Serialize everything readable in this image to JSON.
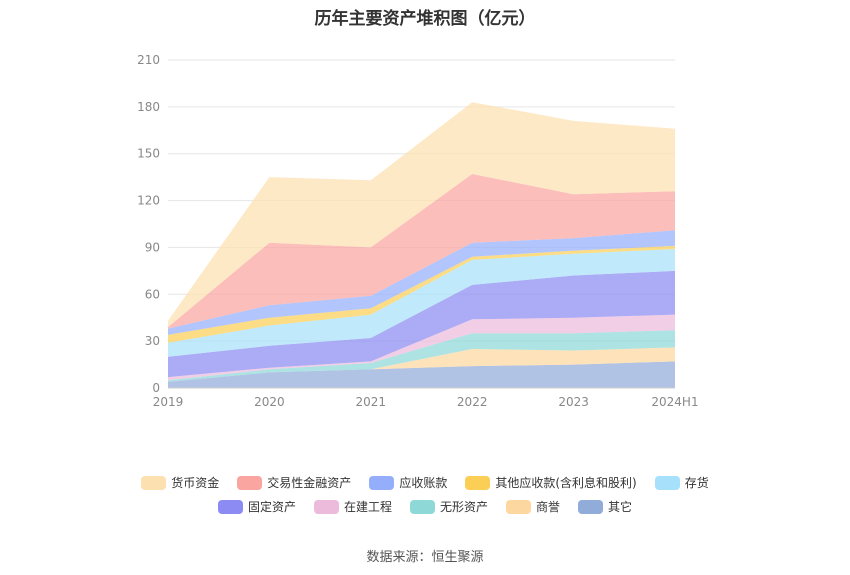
{
  "title": "历年主要资产堆积图（亿元）",
  "source": "数据来源：恒生聚源",
  "chart_data": {
    "type": "area",
    "stacked": true,
    "title": "历年主要资产堆积图（亿元）",
    "categories": [
      "2019",
      "2020",
      "2021",
      "2022",
      "2023",
      "2024H1"
    ],
    "ylim": [
      0,
      210
    ],
    "yticks": [
      0,
      30,
      60,
      90,
      120,
      150,
      180,
      210
    ],
    "grid": true,
    "legend_position": "bottom",
    "series": [
      {
        "name": "其它",
        "color": "#92acd9",
        "values": [
          4,
          10,
          12,
          14,
          15,
          17
        ]
      },
      {
        "name": "商誉",
        "color": "#fdd7a0",
        "values": [
          0,
          0,
          0,
          11,
          9,
          9
        ]
      },
      {
        "name": "无形资产",
        "color": "#8ed8d8",
        "values": [
          1,
          2,
          4,
          10,
          11,
          11
        ]
      },
      {
        "name": "在建工程",
        "color": "#ecbbdc",
        "values": [
          2,
          1,
          1,
          9,
          10,
          10
        ]
      },
      {
        "name": "固定资产",
        "color": "#8b8bf3",
        "values": [
          13,
          14,
          15,
          22,
          27,
          28
        ]
      },
      {
        "name": "存货",
        "color": "#a7e0fa",
        "values": [
          9,
          13,
          15,
          16,
          14,
          14
        ]
      },
      {
        "name": "其他应收款(含利息和股利)",
        "color": "#fbcf55",
        "values": [
          5,
          5,
          4,
          2,
          2,
          2
        ]
      },
      {
        "name": "应收账款",
        "color": "#95aefc",
        "values": [
          4,
          8,
          8,
          9,
          8,
          10
        ]
      },
      {
        "name": "交易性金融资产",
        "color": "#fba5a0",
        "values": [
          1,
          40,
          31,
          44,
          28,
          25
        ]
      },
      {
        "name": "货币资金",
        "color": "#fde0b0",
        "values": [
          4,
          42,
          43,
          46,
          47,
          40
        ]
      }
    ],
    "legend_order": [
      "货币资金",
      "交易性金融资产",
      "应收账款",
      "其他应收款(含利息和股利)",
      "存货",
      "固定资产",
      "在建工程",
      "无形资产",
      "商誉",
      "其它"
    ]
  }
}
